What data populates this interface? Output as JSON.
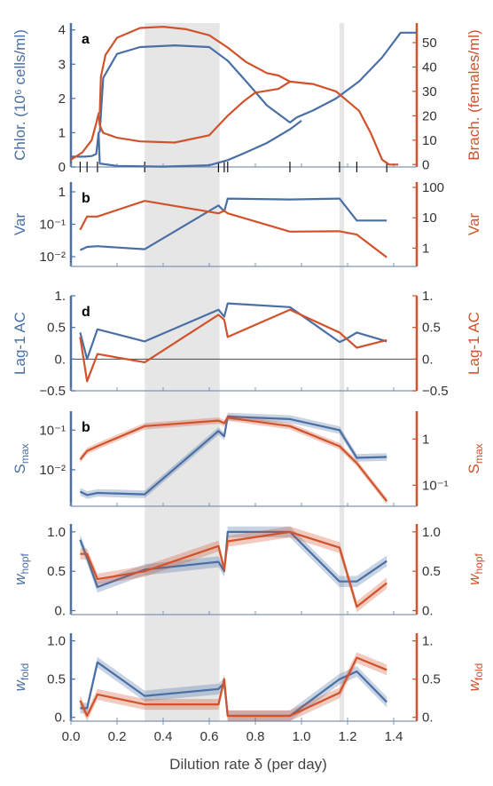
{
  "colors": {
    "blue": "#4a6fa5",
    "red": "#d1522b",
    "band": "#e6e6e6",
    "axis": "#7f94b5"
  },
  "x_axis": {
    "label": "Dilution rate δ (per day)",
    "range": [
      0,
      1.5
    ],
    "ticks": [
      "0.0",
      "0.2",
      "0.4",
      "0.6",
      "0.8",
      "1.0",
      "1.2",
      "1.4"
    ]
  },
  "shaded_bands": [
    [
      0.32,
      0.645
    ],
    [
      1.165,
      1.185
    ]
  ],
  "chart_data": [
    {
      "type": "line",
      "panel_letter": "a",
      "left_label": "Chlor. (10⁶ cells/ml)",
      "right_label": "Brach. (females/ml)",
      "left_ylim": [
        0,
        4.2
      ],
      "right_ylim": [
        -1,
        58
      ],
      "left_ticks": [
        "0",
        "1",
        "2",
        "3",
        "4"
      ],
      "right_ticks": [
        "0",
        "10",
        "20",
        "30",
        "40",
        "50"
      ],
      "sample_marks_x": [
        0.04,
        0.07,
        0.115,
        0.32,
        0.64,
        0.665,
        0.68,
        0.95,
        1.165,
        1.24,
        1.37
      ],
      "series": [
        {
          "color": "blue",
          "axis": "left",
          "points": [
            [
              0.0,
              0.3
            ],
            [
              0.06,
              0.3
            ],
            [
              0.09,
              0.32
            ],
            [
              0.11,
              0.38
            ],
            [
              0.12,
              1.0
            ],
            [
              0.125,
              0.1
            ],
            [
              0.2,
              0.03
            ],
            [
              0.4,
              0.01
            ],
            [
              0.6,
              0.05
            ],
            [
              0.68,
              0.2
            ],
            [
              0.75,
              0.4
            ],
            [
              0.85,
              0.7
            ],
            [
              0.95,
              1.1
            ],
            [
              1.0,
              1.35
            ]
          ]
        },
        {
          "color": "blue",
          "axis": "left",
          "points": [
            [
              0.125,
              1.0
            ],
            [
              0.14,
              2.6
            ],
            [
              0.2,
              3.3
            ],
            [
              0.3,
              3.5
            ],
            [
              0.45,
              3.55
            ],
            [
              0.6,
              3.5
            ],
            [
              0.68,
              3.1
            ],
            [
              0.76,
              2.5
            ],
            [
              0.85,
              1.8
            ],
            [
              0.95,
              1.3
            ],
            [
              0.98,
              1.45
            ],
            [
              1.05,
              1.65
            ],
            [
              1.15,
              2.0
            ],
            [
              1.25,
              2.5
            ],
            [
              1.35,
              3.2
            ],
            [
              1.43,
              3.92
            ],
            [
              1.5,
              3.92
            ]
          ]
        },
        {
          "color": "red",
          "axis": "right",
          "points": [
            [
              0.0,
              2.0
            ],
            [
              0.05,
              5.0
            ],
            [
              0.09,
              10.0
            ],
            [
              0.11,
              17.0
            ],
            [
              0.12,
              21.0
            ],
            [
              0.125,
              16.0
            ],
            [
              0.14,
              13.0
            ],
            [
              0.2,
              11.0
            ],
            [
              0.3,
              9.5
            ],
            [
              0.45,
              9.0
            ],
            [
              0.6,
              12.0
            ],
            [
              0.68,
              20.0
            ],
            [
              0.75,
              26.0
            ],
            [
              0.8,
              29.5
            ],
            [
              0.9,
              31.0
            ],
            [
              0.95,
              34.0
            ],
            [
              1.05,
              33.0
            ],
            [
              1.15,
              30.0
            ],
            [
              1.25,
              22.0
            ],
            [
              1.3,
              13.0
            ],
            [
              1.35,
              2.0
            ],
            [
              1.38,
              0.0
            ],
            [
              1.42,
              0.0
            ]
          ]
        },
        {
          "color": "red",
          "axis": "right",
          "points": [
            [
              0.125,
              21.0
            ],
            [
              0.13,
              36.0
            ],
            [
              0.15,
              45.0
            ],
            [
              0.2,
              52.0
            ],
            [
              0.3,
              56.0
            ],
            [
              0.4,
              56.5
            ],
            [
              0.5,
              55.5
            ],
            [
              0.6,
              53.0
            ],
            [
              0.68,
              48.0
            ],
            [
              0.76,
              42.0
            ],
            [
              0.85,
              37.5
            ],
            [
              0.9,
              36.5
            ],
            [
              0.95,
              34.0
            ]
          ]
        }
      ]
    },
    {
      "type": "line",
      "panel_letter": "b",
      "left_label": "Var",
      "right_label": "Var",
      "left_log": true,
      "right_log": true,
      "left_ylim": [
        0.005,
        2.0
      ],
      "right_ylim": [
        0.25,
        150
      ],
      "left_ticks": [
        {
          "v": 1,
          "t": "1"
        },
        {
          "v": 0.1,
          "t": "10⁻¹"
        },
        {
          "v": 0.01,
          "t": "10⁻²"
        }
      ],
      "right_ticks": [
        {
          "v": 100,
          "t": "100"
        },
        {
          "v": 10,
          "t": "10"
        },
        {
          "v": 1,
          "t": "1"
        }
      ],
      "series": [
        {
          "color": "blue",
          "axis": "left",
          "points": [
            [
              0.04,
              0.016
            ],
            [
              0.07,
              0.02
            ],
            [
              0.115,
              0.021
            ],
            [
              0.32,
              0.017
            ],
            [
              0.64,
              0.38
            ],
            [
              0.665,
              0.25
            ],
            [
              0.68,
              0.62
            ],
            [
              0.95,
              0.58
            ],
            [
              1.165,
              0.62
            ],
            [
              1.24,
              0.13
            ],
            [
              1.37,
              0.13
            ]
          ]
        },
        {
          "color": "red",
          "axis": "right",
          "points": [
            [
              0.04,
              4.0
            ],
            [
              0.07,
              11.0
            ],
            [
              0.115,
              11.0
            ],
            [
              0.32,
              36.0
            ],
            [
              0.64,
              14.0
            ],
            [
              0.665,
              17.0
            ],
            [
              0.68,
              14.0
            ],
            [
              0.95,
              3.5
            ],
            [
              1.165,
              3.6
            ],
            [
              1.24,
              2.8
            ],
            [
              1.37,
              0.5
            ]
          ]
        }
      ]
    },
    {
      "type": "line",
      "panel_letter": "d",
      "left_label": "Lag-1 AC",
      "right_label": "Lag-1 AC",
      "left_ylim": [
        -0.5,
        1.0
      ],
      "right_ylim": [
        -0.5,
        1.0
      ],
      "left_ticks": [
        "1.",
        "0.5",
        "0.",
        "−0.5"
      ],
      "right_ticks": [
        "1.",
        "0.5",
        "0.",
        "−0.5"
      ],
      "zero_line": true,
      "series": [
        {
          "color": "blue",
          "axis": "left",
          "points": [
            [
              0.04,
              0.42
            ],
            [
              0.07,
              0.0
            ],
            [
              0.115,
              0.47
            ],
            [
              0.32,
              0.28
            ],
            [
              0.64,
              0.78
            ],
            [
              0.665,
              0.67
            ],
            [
              0.68,
              0.88
            ],
            [
              0.95,
              0.82
            ],
            [
              1.165,
              0.27
            ],
            [
              1.195,
              0.32
            ],
            [
              1.24,
              0.42
            ],
            [
              1.37,
              0.28
            ]
          ]
        },
        {
          "color": "red",
          "axis": "right",
          "points": [
            [
              0.04,
              0.35
            ],
            [
              0.07,
              -0.35
            ],
            [
              0.115,
              0.08
            ],
            [
              0.32,
              -0.05
            ],
            [
              0.64,
              0.7
            ],
            [
              0.665,
              0.62
            ],
            [
              0.68,
              0.35
            ],
            [
              0.95,
              0.78
            ],
            [
              1.165,
              0.42
            ],
            [
              1.24,
              0.18
            ],
            [
              1.37,
              0.3
            ]
          ]
        }
      ]
    },
    {
      "type": "line",
      "panel_letter": "b",
      "left_label": "Sₘₐₓ",
      "right_label": "Sₘₐₓ",
      "left_log": true,
      "right_log": true,
      "left_ylim": [
        0.0012,
        0.3
      ],
      "right_ylim": [
        0.035,
        4.0
      ],
      "left_ticks": [
        {
          "v": 0.1,
          "t": "10⁻¹"
        },
        {
          "v": 0.01,
          "t": "10⁻²"
        }
      ],
      "right_ticks": [
        {
          "v": 1,
          "t": "1"
        },
        {
          "v": 0.1,
          "t": "10⁻¹"
        }
      ],
      "series": [
        {
          "color": "blue",
          "axis": "left",
          "band": 0.1,
          "points": [
            [
              0.04,
              0.0028
            ],
            [
              0.07,
              0.0023
            ],
            [
              0.115,
              0.0026
            ],
            [
              0.32,
              0.0024
            ],
            [
              0.64,
              0.095
            ],
            [
              0.665,
              0.07
            ],
            [
              0.68,
              0.22
            ],
            [
              0.95,
              0.19
            ],
            [
              1.165,
              0.1
            ],
            [
              1.24,
              0.02
            ],
            [
              1.37,
              0.021
            ]
          ]
        },
        {
          "color": "red",
          "axis": "right",
          "band": 0.07,
          "points": [
            [
              0.04,
              0.36
            ],
            [
              0.07,
              0.55
            ],
            [
              0.115,
              0.7
            ],
            [
              0.32,
              1.9
            ],
            [
              0.64,
              2.5
            ],
            [
              0.665,
              2.2
            ],
            [
              0.68,
              2.9
            ],
            [
              0.95,
              1.9
            ],
            [
              1.165,
              0.7
            ],
            [
              1.24,
              0.3
            ],
            [
              1.37,
              0.045
            ]
          ]
        }
      ]
    },
    {
      "type": "line",
      "left_label": "w_hopf",
      "right_label": "w_hopf",
      "left_ylim": [
        -0.05,
        1.1
      ],
      "right_ylim": [
        -0.05,
        1.1
      ],
      "left_ticks": [
        "1.0",
        "0.5",
        "0."
      ],
      "right_ticks": [
        "1.0",
        "0.5",
        "0."
      ],
      "series": [
        {
          "color": "blue",
          "axis": "left",
          "band": 0.07,
          "points": [
            [
              0.04,
              0.9
            ],
            [
              0.07,
              0.67
            ],
            [
              0.115,
              0.3
            ],
            [
              0.32,
              0.52
            ],
            [
              0.64,
              0.62
            ],
            [
              0.665,
              0.5
            ],
            [
              0.68,
              1.0
            ],
            [
              0.95,
              1.0
            ],
            [
              1.165,
              0.37
            ],
            [
              1.24,
              0.37
            ],
            [
              1.37,
              0.63
            ]
          ]
        },
        {
          "color": "red",
          "axis": "right",
          "band": 0.07,
          "points": [
            [
              0.04,
              0.72
            ],
            [
              0.07,
              0.72
            ],
            [
              0.115,
              0.4
            ],
            [
              0.32,
              0.5
            ],
            [
              0.64,
              0.82
            ],
            [
              0.665,
              0.52
            ],
            [
              0.68,
              0.88
            ],
            [
              0.95,
              1.0
            ],
            [
              1.165,
              0.8
            ],
            [
              1.24,
              0.05
            ],
            [
              1.37,
              0.35
            ]
          ]
        }
      ]
    },
    {
      "type": "line",
      "left_label": "w_fold",
      "right_label": "w_fold",
      "left_ylim": [
        -0.05,
        1.1
      ],
      "right_ylim": [
        -0.05,
        1.1
      ],
      "left_ticks": [
        "1.0",
        "0.5",
        "0."
      ],
      "right_ticks": [
        "1.",
        "0.5",
        "0."
      ],
      "series": [
        {
          "color": "blue",
          "axis": "left",
          "band": 0.07,
          "points": [
            [
              0.04,
              0.12
            ],
            [
              0.07,
              0.12
            ],
            [
              0.115,
              0.72
            ],
            [
              0.32,
              0.28
            ],
            [
              0.64,
              0.37
            ],
            [
              0.665,
              0.45
            ],
            [
              0.68,
              0.02
            ],
            [
              0.95,
              0.02
            ],
            [
              1.165,
              0.5
            ],
            [
              1.24,
              0.6
            ],
            [
              1.37,
              0.2
            ]
          ]
        },
        {
          "color": "red",
          "axis": "right",
          "band": 0.07,
          "points": [
            [
              0.04,
              0.22
            ],
            [
              0.07,
              0.02
            ],
            [
              0.115,
              0.3
            ],
            [
              0.32,
              0.17
            ],
            [
              0.64,
              0.17
            ],
            [
              0.665,
              0.5
            ],
            [
              0.68,
              0.02
            ],
            [
              0.95,
              0.02
            ],
            [
              1.165,
              0.32
            ],
            [
              1.24,
              0.78
            ],
            [
              1.37,
              0.62
            ]
          ]
        }
      ]
    }
  ]
}
